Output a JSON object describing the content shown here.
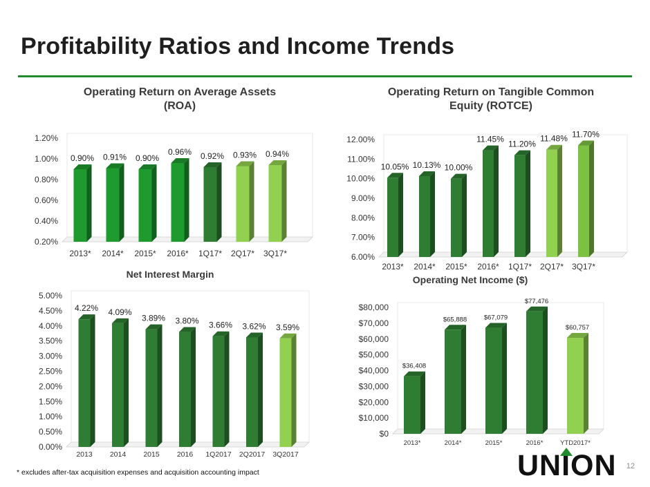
{
  "slide": {
    "title": "Profitability Ratios and Income Trends",
    "footnote": "* excludes after-tax acquisition expenses and acquisition accounting impact",
    "page_number": "12",
    "logo_text": "UNION"
  },
  "colors": {
    "title_rule": "#1f8b2e",
    "bar_dark": "#2e7d32",
    "bar_mid": "#1f9a2e",
    "bar_light": "#92d050",
    "axis": "#d9d9d9"
  },
  "chart_data": [
    {
      "id": "roa",
      "type": "bar",
      "title": "Operating Return on Average Assets (ROA)",
      "title_lines": [
        "Operating Return on Average Assets",
        "(ROA)"
      ],
      "categories": [
        "2013*",
        "2014*",
        "2015*",
        "2016*",
        "1Q17*",
        "2Q17*",
        "3Q17*"
      ],
      "values": [
        0.9,
        0.91,
        0.9,
        0.96,
        0.92,
        0.93,
        0.94
      ],
      "data_labels": [
        "0.90%",
        "0.91%",
        "0.90%",
        "0.96%",
        "0.92%",
        "0.93%",
        "0.94%"
      ],
      "bar_colors": [
        "#1f9a2e",
        "#1f9a2e",
        "#1f9a2e",
        "#1f9a2e",
        "#2e7d32",
        "#92d050",
        "#92d050"
      ],
      "ylim": [
        0.2,
        1.2
      ],
      "yticks": [
        "0.20%",
        "0.40%",
        "0.60%",
        "0.80%",
        "1.00%",
        "1.20%"
      ],
      "ytick_values": [
        0.2,
        0.4,
        0.6,
        0.8,
        1.0,
        1.2
      ]
    },
    {
      "id": "rotce",
      "type": "bar",
      "title": "Operating Return on Tangible Common Equity (ROTCE)",
      "title_lines": [
        "Operating Return on Tangible Common",
        "Equity (ROTCE)"
      ],
      "categories": [
        "2013*",
        "2014*",
        "2015*",
        "2016*",
        "1Q17*",
        "2Q17*",
        "3Q17*"
      ],
      "values": [
        10.05,
        10.13,
        10.0,
        11.45,
        11.2,
        11.48,
        11.7
      ],
      "data_labels": [
        "10.05%",
        "10.13%",
        "10.00%",
        "11.45%",
        "11.20%",
        "11.48%",
        "11.70%"
      ],
      "bar_colors": [
        "#2e7d32",
        "#2e7d32",
        "#2e7d32",
        "#2e7d32",
        "#2e7d32",
        "#92d050",
        "#7cc142"
      ],
      "ylim": [
        6.0,
        12.0
      ],
      "yticks": [
        "6.00%",
        "7.00%",
        "8.00%",
        "9.00%",
        "10.00%",
        "11.00%",
        "12.00%"
      ],
      "ytick_values": [
        6,
        7,
        8,
        9,
        10,
        11,
        12
      ]
    },
    {
      "id": "nim",
      "type": "bar",
      "title": "Net Interest Margin",
      "title_lines": [
        "Net Interest Margin"
      ],
      "categories": [
        "2013",
        "2014",
        "2015",
        "2016",
        "1Q2017",
        "2Q2017",
        "3Q2017"
      ],
      "values": [
        4.22,
        4.09,
        3.89,
        3.8,
        3.66,
        3.62,
        3.59
      ],
      "data_labels": [
        "4.22%",
        "4.09%",
        "3.89%",
        "3.80%",
        "3.66%",
        "3.62%",
        "3.59%"
      ],
      "bar_colors": [
        "#2e7d32",
        "#2e7d32",
        "#2e7d32",
        "#2e7d32",
        "#2e7d32",
        "#2e7d32",
        "#92d050"
      ],
      "ylim": [
        0.0,
        5.0
      ],
      "yticks": [
        "0.00%",
        "0.50%",
        "1.00%",
        "1.50%",
        "2.00%",
        "2.50%",
        "3.00%",
        "3.50%",
        "4.00%",
        "4.50%",
        "5.00%"
      ],
      "ytick_values": [
        0,
        0.5,
        1,
        1.5,
        2,
        2.5,
        3,
        3.5,
        4,
        4.5,
        5
      ]
    },
    {
      "id": "income",
      "type": "bar",
      "title": "Operating Net Income ($)",
      "title_lines": [
        "Operating Net Income ($)"
      ],
      "categories": [
        "2013*",
        "2014*",
        "2015*",
        "2016*",
        "YTD2017*"
      ],
      "values": [
        36408,
        65888,
        67079,
        77476,
        60757
      ],
      "data_labels": [
        "$36,408",
        "$65,888",
        "$67,079",
        "$77,476",
        "$60,757"
      ],
      "bar_colors": [
        "#2e7d32",
        "#2e7d32",
        "#2e7d32",
        "#2e7d32",
        "#92d050"
      ],
      "ylim": [
        0,
        80000
      ],
      "yticks": [
        "$0",
        "$10,000",
        "$20,000",
        "$30,000",
        "$40,000",
        "$50,000",
        "$60,000",
        "$70,000",
        "$80,000"
      ],
      "ytick_values": [
        0,
        10000,
        20000,
        30000,
        40000,
        50000,
        60000,
        70000,
        80000
      ]
    }
  ]
}
